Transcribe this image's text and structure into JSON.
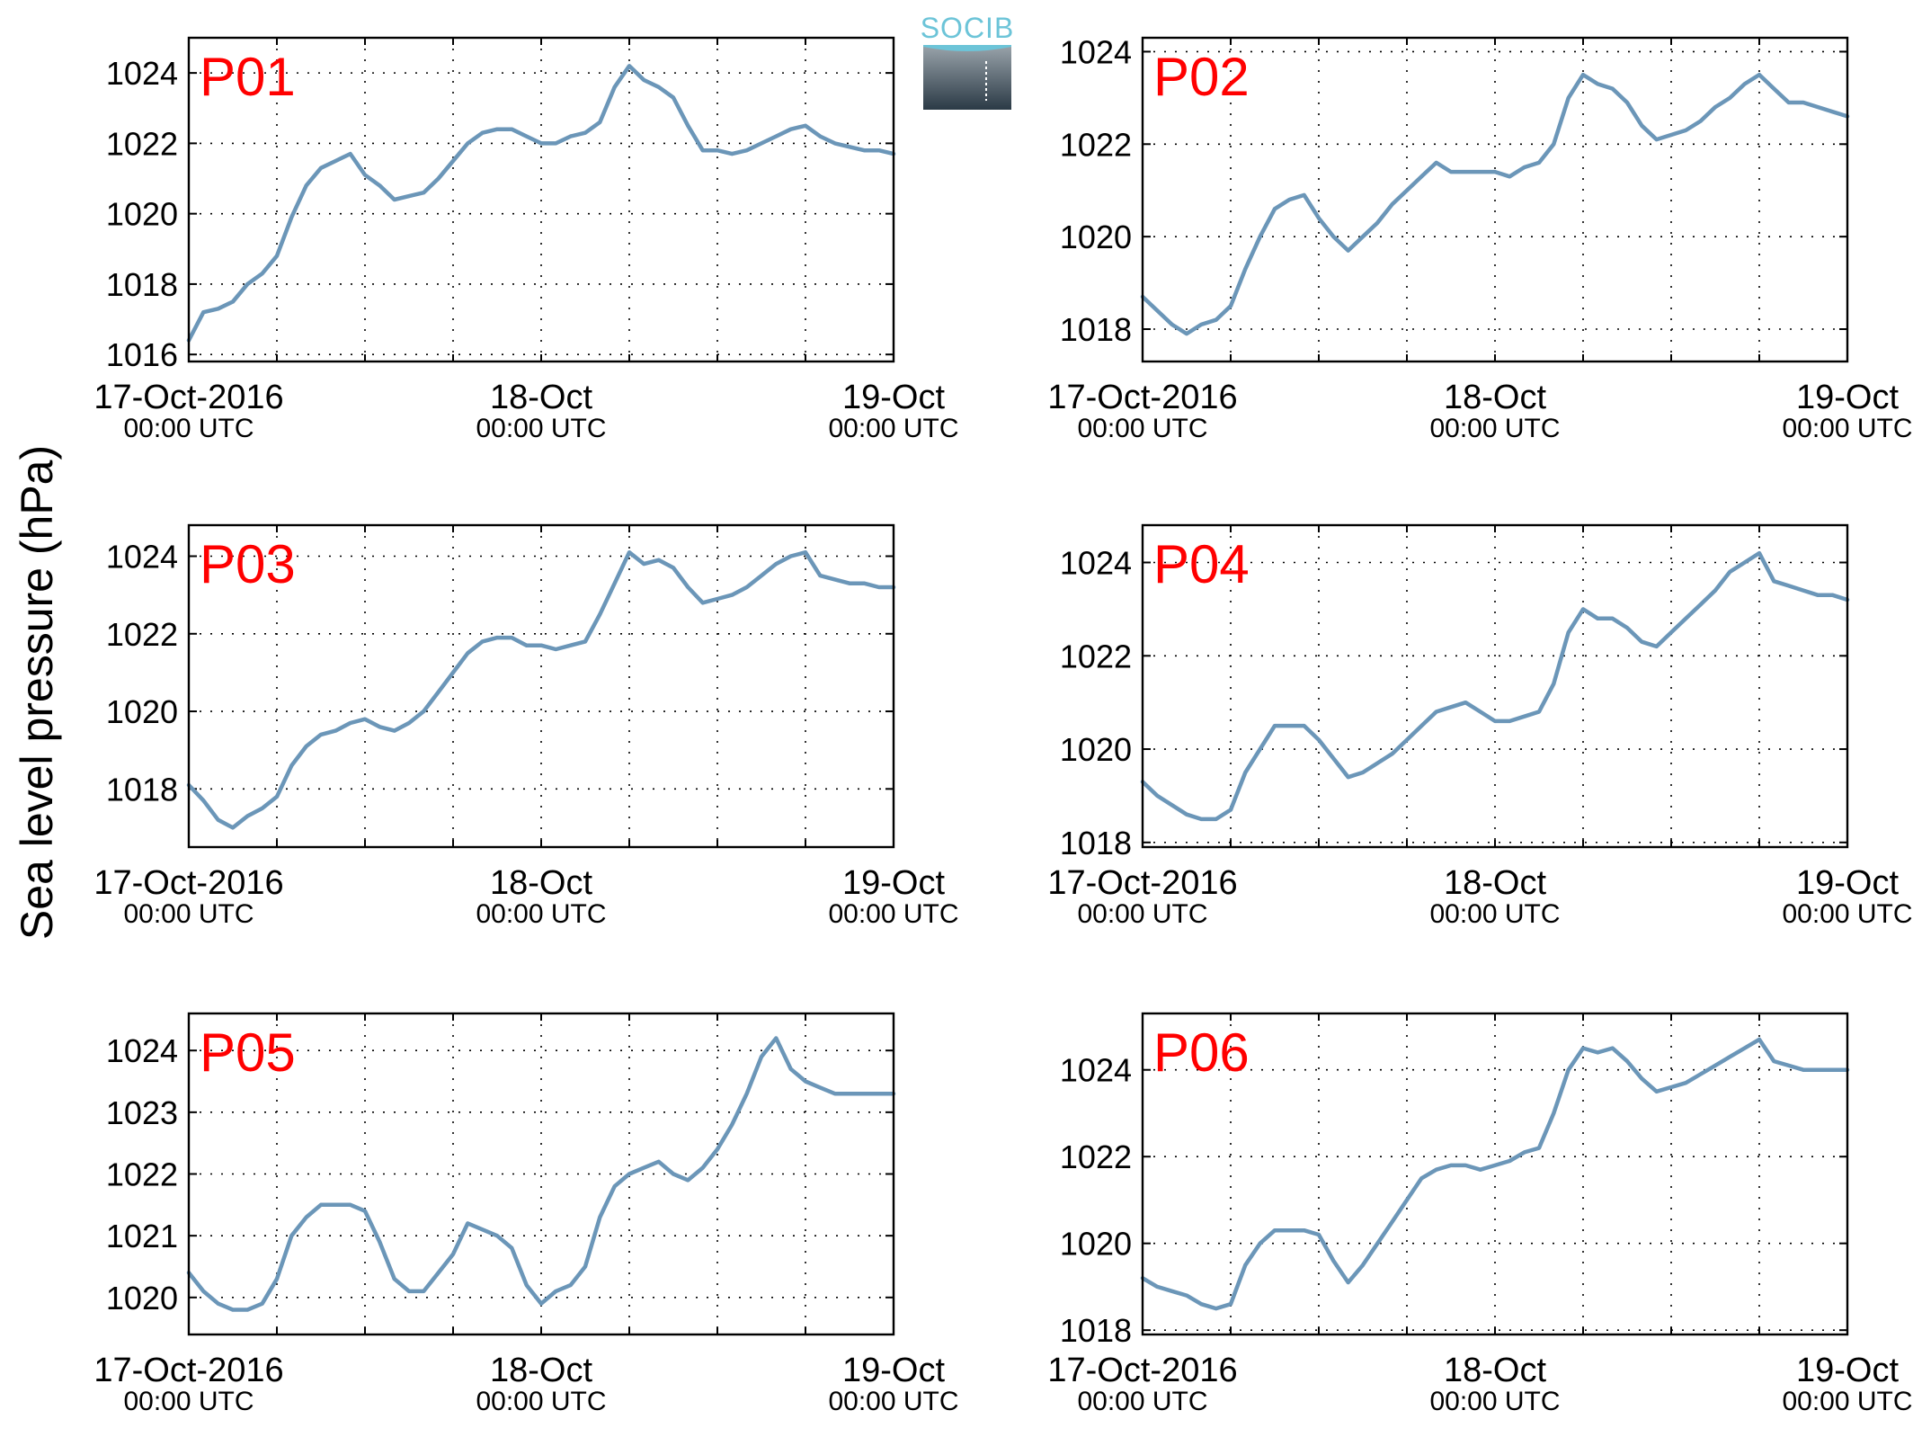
{
  "figure": {
    "ylabel": "Sea level pressure (hPa)",
    "logo_text": "SOCIB",
    "colors": {
      "line": "#6b96b8",
      "panel_label": "#ff0000",
      "axis": "#000000",
      "grid": "#000000"
    },
    "x_ticks": [
      {
        "line1": "17-Oct-2016",
        "line2": "00:00 UTC"
      },
      {
        "line1": "18-Oct",
        "line2": "00:00 UTC"
      },
      {
        "line1": "19-Oct",
        "line2": "00:00 UTC"
      }
    ]
  },
  "chart_data": [
    {
      "type": "line",
      "panel": "P01",
      "x_unit": "hours since 17-Oct-2016 00:00 UTC",
      "xlim": [
        0,
        48
      ],
      "ylim": [
        1015.8,
        1025.0
      ],
      "yticks": [
        1016,
        1018,
        1020,
        1022,
        1024
      ],
      "grid": true,
      "x": [
        0,
        1,
        2,
        3,
        4,
        5,
        6,
        7,
        8,
        9,
        10,
        11,
        12,
        13,
        14,
        15,
        16,
        17,
        18,
        19,
        20,
        21,
        22,
        23,
        24,
        25,
        26,
        27,
        28,
        29,
        30,
        31,
        32,
        33,
        34,
        35,
        36,
        37,
        38,
        39,
        40,
        41,
        42,
        43,
        44,
        45,
        46,
        47,
        48
      ],
      "y": [
        1016.4,
        1017.2,
        1017.3,
        1017.5,
        1018.0,
        1018.3,
        1018.8,
        1019.9,
        1020.8,
        1021.3,
        1021.5,
        1021.7,
        1021.1,
        1020.8,
        1020.4,
        1020.5,
        1020.6,
        1021.0,
        1021.5,
        1022.0,
        1022.3,
        1022.4,
        1022.4,
        1022.2,
        1022.0,
        1022.0,
        1022.2,
        1022.3,
        1022.6,
        1023.6,
        1024.2,
        1023.8,
        1023.6,
        1023.3,
        1022.5,
        1021.8,
        1021.8,
        1021.7,
        1021.8,
        1022.0,
        1022.2,
        1022.4,
        1022.5,
        1022.2,
        1022.0,
        1021.9,
        1021.8,
        1021.8,
        1021.7
      ]
    },
    {
      "type": "line",
      "panel": "P02",
      "x_unit": "hours since 17-Oct-2016 00:00 UTC",
      "xlim": [
        0,
        48
      ],
      "ylim": [
        1017.3,
        1024.3
      ],
      "yticks": [
        1018,
        1020,
        1022,
        1024
      ],
      "grid": true,
      "x": [
        0,
        1,
        2,
        3,
        4,
        5,
        6,
        7,
        8,
        9,
        10,
        11,
        12,
        13,
        14,
        15,
        16,
        17,
        18,
        19,
        20,
        21,
        22,
        23,
        24,
        25,
        26,
        27,
        28,
        29,
        30,
        31,
        32,
        33,
        34,
        35,
        36,
        37,
        38,
        39,
        40,
        41,
        42,
        43,
        44,
        45,
        46,
        47,
        48
      ],
      "y": [
        1018.7,
        1018.4,
        1018.1,
        1017.9,
        1018.1,
        1018.2,
        1018.5,
        1019.3,
        1020.0,
        1020.6,
        1020.8,
        1020.9,
        1020.4,
        1020.0,
        1019.7,
        1020.0,
        1020.3,
        1020.7,
        1021.0,
        1021.3,
        1021.6,
        1021.4,
        1021.4,
        1021.4,
        1021.4,
        1021.3,
        1021.5,
        1021.6,
        1022.0,
        1023.0,
        1023.5,
        1023.3,
        1023.2,
        1022.9,
        1022.4,
        1022.1,
        1022.2,
        1022.3,
        1022.5,
        1022.8,
        1023.0,
        1023.3,
        1023.5,
        1023.2,
        1022.9,
        1022.9,
        1022.8,
        1022.7,
        1022.6
      ]
    },
    {
      "type": "line",
      "panel": "P03",
      "x_unit": "hours since 17-Oct-2016 00:00 UTC",
      "xlim": [
        0,
        48
      ],
      "ylim": [
        1016.5,
        1024.8
      ],
      "yticks": [
        1018,
        1020,
        1022,
        1024
      ],
      "grid": true,
      "x": [
        0,
        1,
        2,
        3,
        4,
        5,
        6,
        7,
        8,
        9,
        10,
        11,
        12,
        13,
        14,
        15,
        16,
        17,
        18,
        19,
        20,
        21,
        22,
        23,
        24,
        25,
        26,
        27,
        28,
        29,
        30,
        31,
        32,
        33,
        34,
        35,
        36,
        37,
        38,
        39,
        40,
        41,
        42,
        43,
        44,
        45,
        46,
        47,
        48
      ],
      "y": [
        1018.1,
        1017.7,
        1017.2,
        1017.0,
        1017.3,
        1017.5,
        1017.8,
        1018.6,
        1019.1,
        1019.4,
        1019.5,
        1019.7,
        1019.8,
        1019.6,
        1019.5,
        1019.7,
        1020.0,
        1020.5,
        1021.0,
        1021.5,
        1021.8,
        1021.9,
        1021.9,
        1021.7,
        1021.7,
        1021.6,
        1021.7,
        1021.8,
        1022.5,
        1023.3,
        1024.1,
        1023.8,
        1023.9,
        1023.7,
        1023.2,
        1022.8,
        1022.9,
        1023.0,
        1023.2,
        1023.5,
        1023.8,
        1024.0,
        1024.1,
        1023.5,
        1023.4,
        1023.3,
        1023.3,
        1023.2,
        1023.2
      ]
    },
    {
      "type": "line",
      "panel": "P04",
      "x_unit": "hours since 17-Oct-2016 00:00 UTC",
      "xlim": [
        0,
        48
      ],
      "ylim": [
        1017.9,
        1024.8
      ],
      "yticks": [
        1018,
        1020,
        1022,
        1024
      ],
      "grid": true,
      "x": [
        0,
        1,
        2,
        3,
        4,
        5,
        6,
        7,
        8,
        9,
        10,
        11,
        12,
        13,
        14,
        15,
        16,
        17,
        18,
        19,
        20,
        21,
        22,
        23,
        24,
        25,
        26,
        27,
        28,
        29,
        30,
        31,
        32,
        33,
        34,
        35,
        36,
        37,
        38,
        39,
        40,
        41,
        42,
        43,
        44,
        45,
        46,
        47,
        48
      ],
      "y": [
        1019.3,
        1019.0,
        1018.8,
        1018.6,
        1018.5,
        1018.5,
        1018.7,
        1019.5,
        1020.0,
        1020.5,
        1020.5,
        1020.5,
        1020.2,
        1019.8,
        1019.4,
        1019.5,
        1019.7,
        1019.9,
        1020.2,
        1020.5,
        1020.8,
        1020.9,
        1021.0,
        1020.8,
        1020.6,
        1020.6,
        1020.7,
        1020.8,
        1021.4,
        1022.5,
        1023.0,
        1022.8,
        1022.8,
        1022.6,
        1022.3,
        1022.2,
        1022.5,
        1022.8,
        1023.1,
        1023.4,
        1023.8,
        1024.0,
        1024.2,
        1023.6,
        1023.5,
        1023.4,
        1023.3,
        1023.3,
        1023.2
      ]
    },
    {
      "type": "line",
      "panel": "P05",
      "x_unit": "hours since 17-Oct-2016 00:00 UTC",
      "xlim": [
        0,
        48
      ],
      "ylim": [
        1019.4,
        1024.6
      ],
      "yticks": [
        1020,
        1021,
        1022,
        1023,
        1024
      ],
      "grid": true,
      "x": [
        0,
        1,
        2,
        3,
        4,
        5,
        6,
        7,
        8,
        9,
        10,
        11,
        12,
        13,
        14,
        15,
        16,
        17,
        18,
        19,
        20,
        21,
        22,
        23,
        24,
        25,
        26,
        27,
        28,
        29,
        30,
        31,
        32,
        33,
        34,
        35,
        36,
        37,
        38,
        39,
        40,
        41,
        42,
        43,
        44,
        45,
        46,
        47,
        48
      ],
      "y": [
        1020.4,
        1020.1,
        1019.9,
        1019.8,
        1019.8,
        1019.9,
        1020.3,
        1021.0,
        1021.3,
        1021.5,
        1021.5,
        1021.5,
        1021.4,
        1020.9,
        1020.3,
        1020.1,
        1020.1,
        1020.4,
        1020.7,
        1021.2,
        1021.1,
        1021.0,
        1020.8,
        1020.2,
        1019.9,
        1020.1,
        1020.2,
        1020.5,
        1021.3,
        1021.8,
        1022.0,
        1022.1,
        1022.2,
        1022.0,
        1021.9,
        1022.1,
        1022.4,
        1022.8,
        1023.3,
        1023.9,
        1024.2,
        1023.7,
        1023.5,
        1023.4,
        1023.3,
        1023.3,
        1023.3,
        1023.3,
        1023.3
      ]
    },
    {
      "type": "line",
      "panel": "P06",
      "x_unit": "hours since 17-Oct-2016 00:00 UTC",
      "xlim": [
        0,
        48
      ],
      "ylim": [
        1017.9,
        1025.3
      ],
      "yticks": [
        1018,
        1020,
        1022,
        1024
      ],
      "grid": true,
      "x": [
        0,
        1,
        2,
        3,
        4,
        5,
        6,
        7,
        8,
        9,
        10,
        11,
        12,
        13,
        14,
        15,
        16,
        17,
        18,
        19,
        20,
        21,
        22,
        23,
        24,
        25,
        26,
        27,
        28,
        29,
        30,
        31,
        32,
        33,
        34,
        35,
        36,
        37,
        38,
        39,
        40,
        41,
        42,
        43,
        44,
        45,
        46,
        47,
        48
      ],
      "y": [
        1019.2,
        1019.0,
        1018.9,
        1018.8,
        1018.6,
        1018.5,
        1018.6,
        1019.5,
        1020.0,
        1020.3,
        1020.3,
        1020.3,
        1020.2,
        1019.6,
        1019.1,
        1019.5,
        1020.0,
        1020.5,
        1021.0,
        1021.5,
        1021.7,
        1021.8,
        1021.8,
        1021.7,
        1021.8,
        1021.9,
        1022.1,
        1022.2,
        1023.0,
        1024.0,
        1024.5,
        1024.4,
        1024.5,
        1024.2,
        1023.8,
        1023.5,
        1023.6,
        1023.7,
        1023.9,
        1024.1,
        1024.3,
        1024.5,
        1024.7,
        1024.2,
        1024.1,
        1024.0,
        1024.0,
        1024.0,
        1024.0
      ]
    }
  ]
}
